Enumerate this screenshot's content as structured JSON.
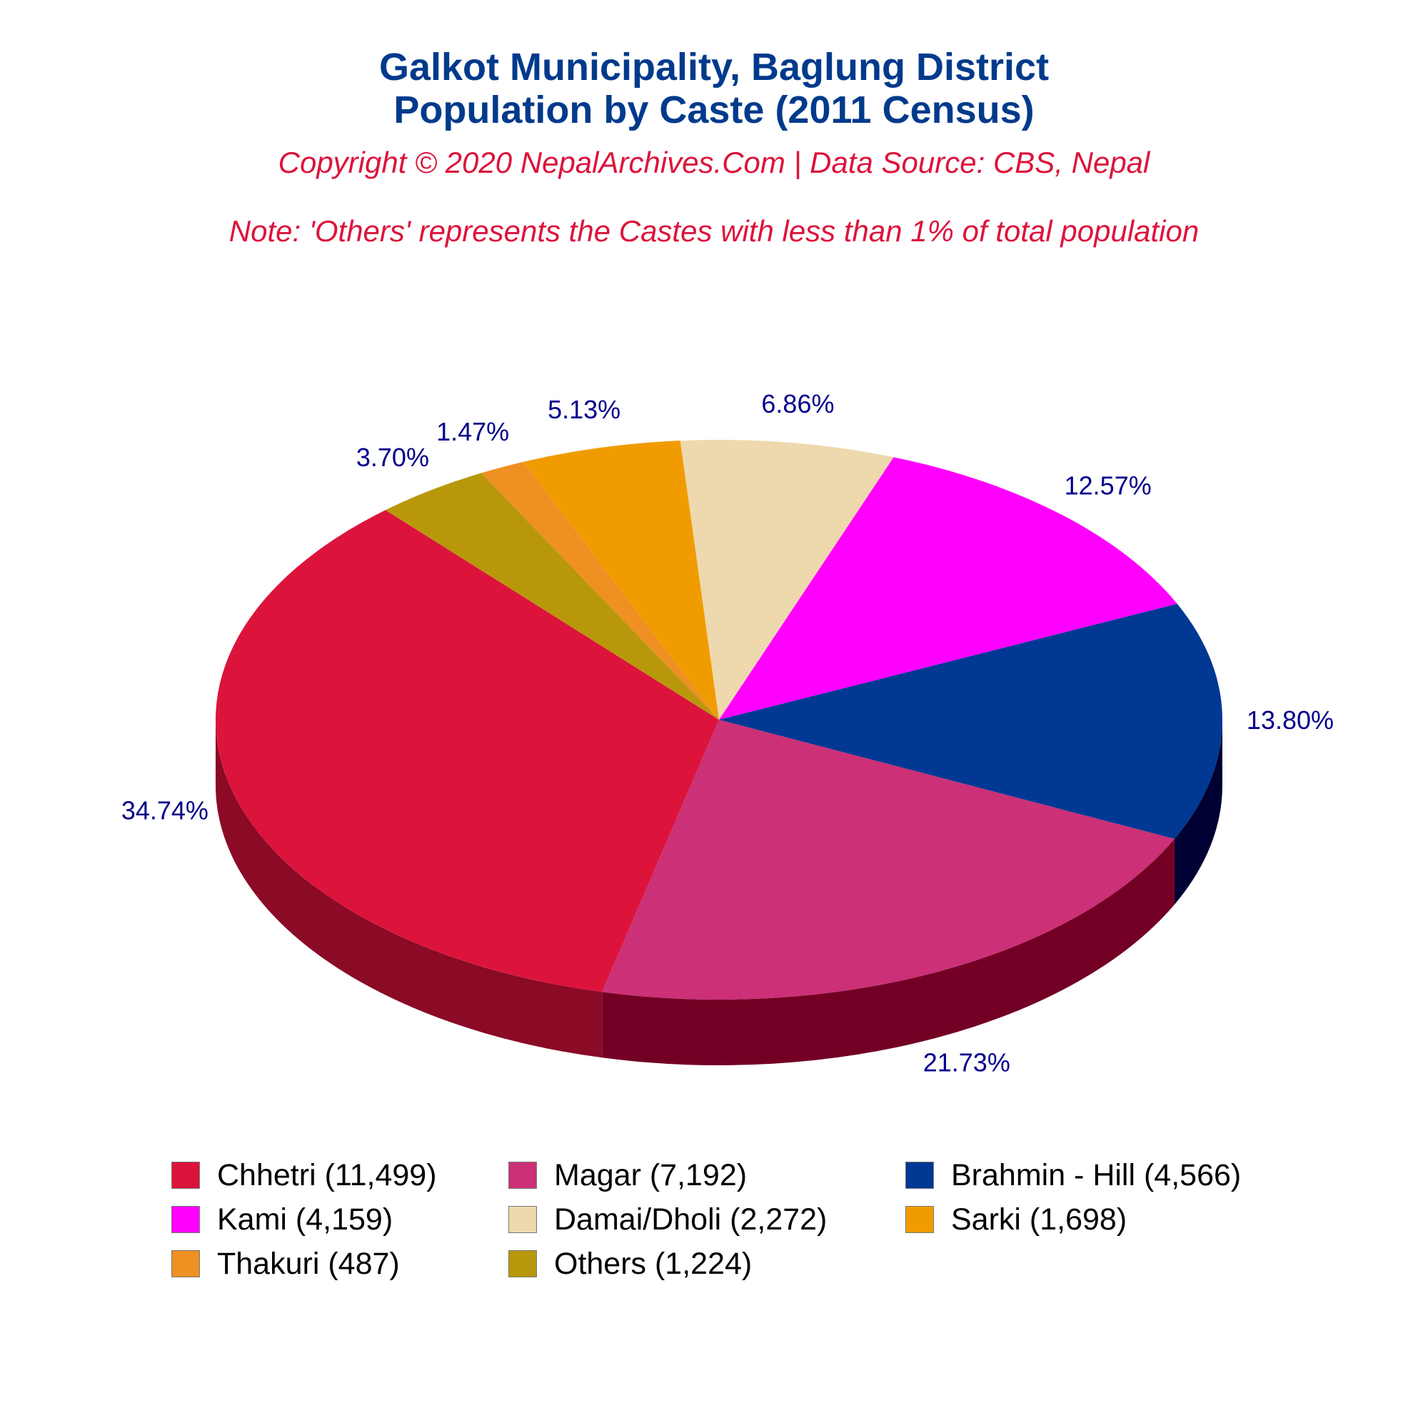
{
  "header": {
    "title_line1": "Galkot Municipality, Baglung District",
    "title_line2": "Population by Caste (2011 Census)",
    "copyright": "Copyright © 2020 NepalArchives.Com | Data Source: CBS, Nepal",
    "note": "Note: 'Others' represents the Castes with less than 1% of total population"
  },
  "chart_data": {
    "type": "pie",
    "style": "3d",
    "label_color": "#00008b",
    "slices": [
      {
        "name": "Chhetri",
        "value": 11499,
        "percent_label": "34.74%",
        "color": "#dc143c",
        "side_color": "#8b0a25",
        "legend": "Chhetri (11,499)"
      },
      {
        "name": "Magar",
        "value": 7192,
        "percent_label": "21.73%",
        "color": "#cc3077",
        "side_color": "#730024",
        "legend": "Magar (7,192)"
      },
      {
        "name": "Brahmin - Hill",
        "value": 4566,
        "percent_label": "13.80%",
        "color": "#003893",
        "side_color": "#000033",
        "legend": "Brahmin - Hill (4,566)"
      },
      {
        "name": "Kami",
        "value": 4159,
        "percent_label": "12.57%",
        "color": "#ff00ff",
        "side_color": "#a600a6",
        "legend": "Kami (4,159)"
      },
      {
        "name": "Damai/Dholi",
        "value": 2272,
        "percent_label": "6.86%",
        "color": "#eed9ae",
        "side_color": "#958050",
        "legend": "Damai/Dholi (2,272)"
      },
      {
        "name": "Sarki",
        "value": 1698,
        "percent_label": "5.13%",
        "color": "#f09c00",
        "side_color": "#8a5a00",
        "legend": "Sarki (1,698)"
      },
      {
        "name": "Thakuri",
        "value": 487,
        "percent_label": "1.47%",
        "color": "#ee9022",
        "side_color": "#8a5210",
        "legend": "Thakuri (487)"
      },
      {
        "name": "Others",
        "value": 1224,
        "percent_label": "3.70%",
        "color": "#b8980a",
        "side_color": "#6b5806",
        "legend": "Others (1,224)"
      }
    ]
  }
}
